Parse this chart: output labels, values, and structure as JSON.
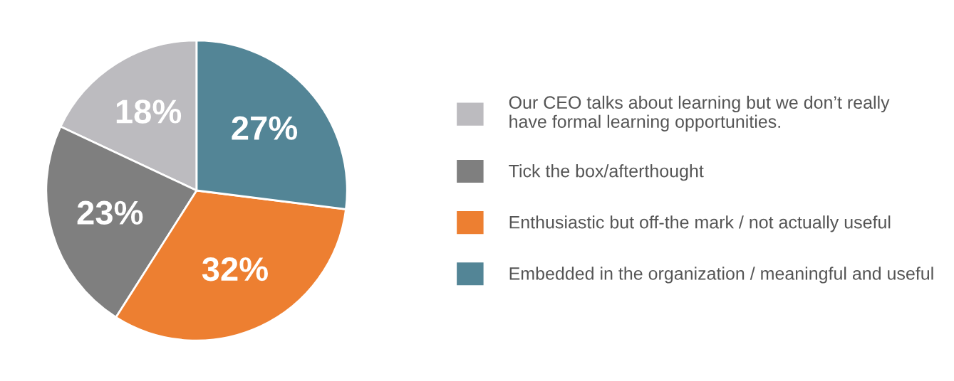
{
  "chart_data": {
    "type": "pie",
    "categories": [
      "Our CEO talks about learning but we don’t really\nhave formal learning opportunities.",
      "Tick the box/afterthought",
      "Enthusiastic but off-the mark / not actually useful",
      "Embedded in the organization / meaningful and useful"
    ],
    "values": [
      18,
      23,
      32,
      27
    ],
    "colors": [
      "#bcbbbf",
      "#7f7f7f",
      "#ed7f31",
      "#538596"
    ],
    "value_labels": [
      "18%",
      "23%",
      "32%",
      "27%"
    ],
    "legend": "right"
  }
}
